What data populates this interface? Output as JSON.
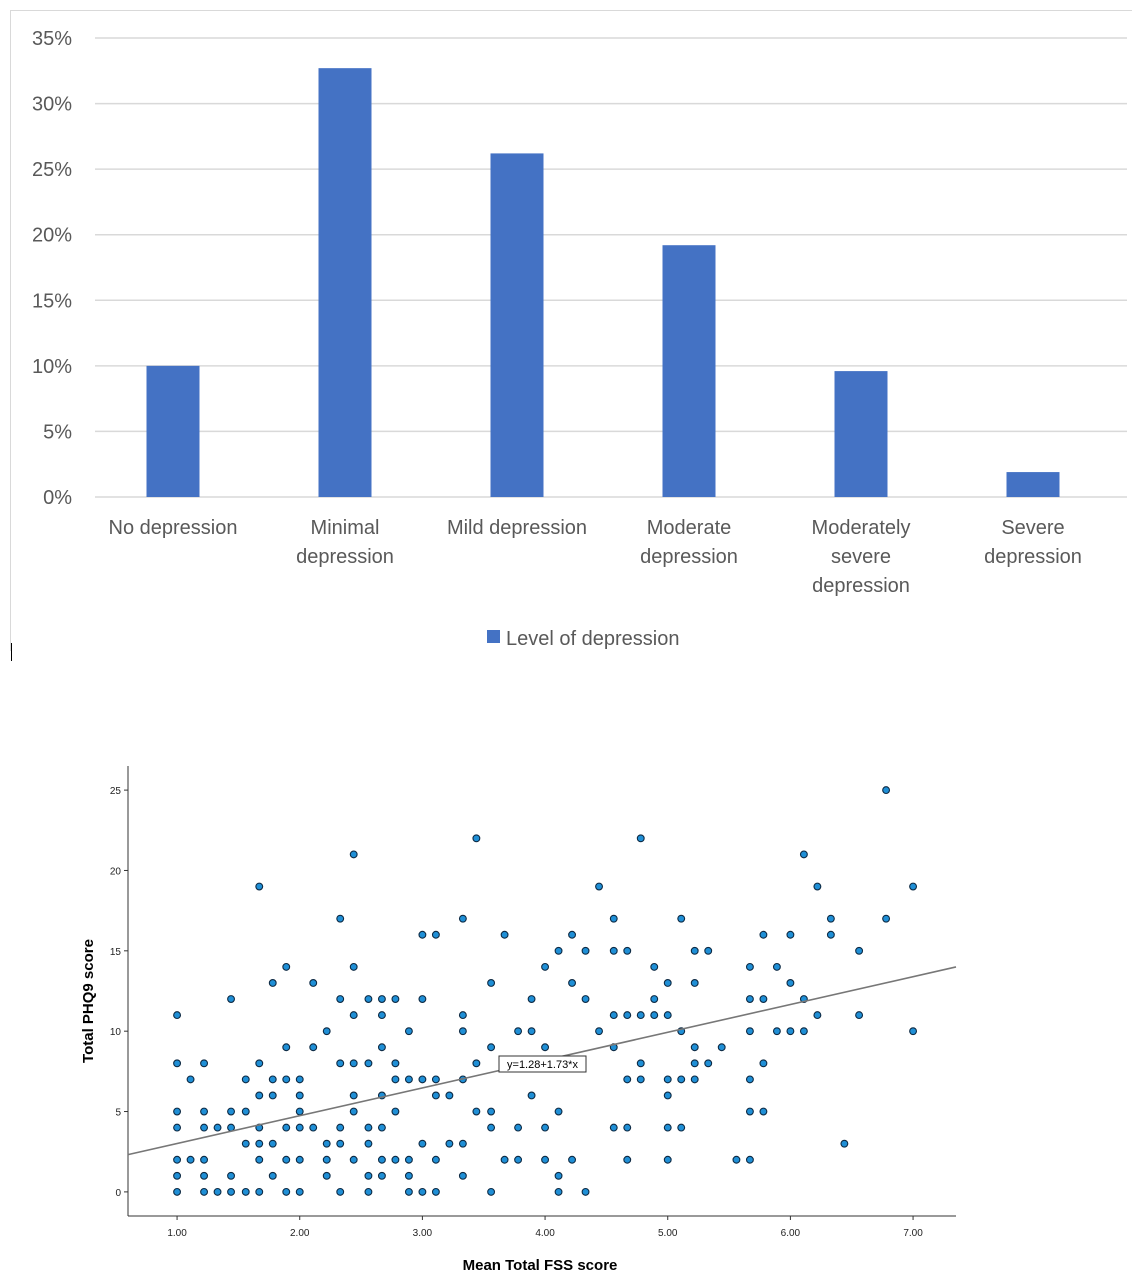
{
  "chart_data": [
    {
      "type": "bar",
      "title": "",
      "xlabel": "",
      "ylabel": "",
      "ylim": [
        0,
        35
      ],
      "y_ticks": [
        "0%",
        "5%",
        "10%",
        "15%",
        "20%",
        "25%",
        "30%",
        "35%"
      ],
      "categories": [
        [
          "No depression"
        ],
        [
          "Minimal",
          "depression"
        ],
        [
          "Mild depression"
        ],
        [
          "Moderate",
          "depression"
        ],
        [
          "Moderately",
          "severe",
          "depression"
        ],
        [
          "Severe",
          "depression"
        ]
      ],
      "series": [
        {
          "name": "Level of depression",
          "values": [
            10,
            32.7,
            26.2,
            19.2,
            9.6,
            1.9
          ]
        }
      ],
      "legend": "bottom-center",
      "grid": true,
      "colors": {
        "bar": "#4472c4",
        "grid": "#d9d9d9",
        "text": "#595959"
      }
    },
    {
      "type": "scatter",
      "xlabel": "Mean Total FSS score",
      "ylabel": "Total PHQ9 score",
      "xlim": [
        0.6,
        7.35
      ],
      "ylim": [
        -1.5,
        26.5
      ],
      "x_ticks": [
        "1.00",
        "2.00",
        "3.00",
        "4.00",
        "5.00",
        "6.00",
        "7.00"
      ],
      "y_ticks": [
        "0",
        "5",
        "10",
        "15",
        "20",
        "25"
      ],
      "fit_line": {
        "intercept": 1.28,
        "slope": 1.73,
        "label": "y=1.28+1.73*x"
      },
      "colors": {
        "point_fill": "#1f8fd6",
        "point_stroke": "#0d2a44",
        "line": "#777777"
      },
      "points": [
        [
          1.0,
          0
        ],
        [
          1.0,
          1
        ],
        [
          1.0,
          2
        ],
        [
          1.0,
          4
        ],
        [
          1.0,
          5
        ],
        [
          1.0,
          8
        ],
        [
          1.0,
          11
        ],
        [
          1.11,
          2
        ],
        [
          1.11,
          7
        ],
        [
          1.22,
          0
        ],
        [
          1.22,
          1
        ],
        [
          1.22,
          2
        ],
        [
          1.22,
          4
        ],
        [
          1.22,
          5
        ],
        [
          1.22,
          8
        ],
        [
          1.33,
          0
        ],
        [
          1.33,
          4
        ],
        [
          1.44,
          0
        ],
        [
          1.44,
          1
        ],
        [
          1.44,
          4
        ],
        [
          1.44,
          5
        ],
        [
          1.44,
          12
        ],
        [
          1.56,
          0
        ],
        [
          1.56,
          3
        ],
        [
          1.56,
          5
        ],
        [
          1.56,
          7
        ],
        [
          1.67,
          0
        ],
        [
          1.67,
          2
        ],
        [
          1.67,
          3
        ],
        [
          1.67,
          4
        ],
        [
          1.67,
          6
        ],
        [
          1.67,
          8
        ],
        [
          1.67,
          19
        ],
        [
          1.78,
          1
        ],
        [
          1.78,
          3
        ],
        [
          1.78,
          6
        ],
        [
          1.78,
          7
        ],
        [
          1.78,
          13
        ],
        [
          1.89,
          0
        ],
        [
          1.89,
          2
        ],
        [
          1.89,
          4
        ],
        [
          1.89,
          7
        ],
        [
          1.89,
          9
        ],
        [
          1.89,
          14
        ],
        [
          2.0,
          0
        ],
        [
          2.0,
          2
        ],
        [
          2.0,
          4
        ],
        [
          2.0,
          5
        ],
        [
          2.0,
          6
        ],
        [
          2.0,
          7
        ],
        [
          2.11,
          4
        ],
        [
          2.11,
          9
        ],
        [
          2.11,
          13
        ],
        [
          2.22,
          1
        ],
        [
          2.22,
          2
        ],
        [
          2.22,
          3
        ],
        [
          2.22,
          10
        ],
        [
          2.33,
          0
        ],
        [
          2.33,
          3
        ],
        [
          2.33,
          4
        ],
        [
          2.33,
          8
        ],
        [
          2.33,
          12
        ],
        [
          2.33,
          17
        ],
        [
          2.44,
          2
        ],
        [
          2.44,
          5
        ],
        [
          2.44,
          6
        ],
        [
          2.44,
          8
        ],
        [
          2.44,
          11
        ],
        [
          2.44,
          14
        ],
        [
          2.44,
          21
        ],
        [
          2.56,
          0
        ],
        [
          2.56,
          1
        ],
        [
          2.56,
          3
        ],
        [
          2.56,
          4
        ],
        [
          2.56,
          8
        ],
        [
          2.56,
          12
        ],
        [
          2.67,
          1
        ],
        [
          2.67,
          2
        ],
        [
          2.67,
          4
        ],
        [
          2.67,
          6
        ],
        [
          2.67,
          9
        ],
        [
          2.67,
          11
        ],
        [
          2.67,
          12
        ],
        [
          2.78,
          2
        ],
        [
          2.78,
          5
        ],
        [
          2.78,
          7
        ],
        [
          2.78,
          8
        ],
        [
          2.78,
          12
        ],
        [
          2.89,
          0
        ],
        [
          2.89,
          1
        ],
        [
          2.89,
          2
        ],
        [
          2.89,
          7
        ],
        [
          2.89,
          10
        ],
        [
          3.0,
          0
        ],
        [
          3.0,
          3
        ],
        [
          3.0,
          7
        ],
        [
          3.0,
          12
        ],
        [
          3.0,
          16
        ],
        [
          3.11,
          0
        ],
        [
          3.11,
          2
        ],
        [
          3.11,
          6
        ],
        [
          3.11,
          7
        ],
        [
          3.11,
          16
        ],
        [
          3.22,
          3
        ],
        [
          3.22,
          6
        ],
        [
          3.33,
          1
        ],
        [
          3.33,
          3
        ],
        [
          3.33,
          7
        ],
        [
          3.33,
          10
        ],
        [
          3.33,
          11
        ],
        [
          3.33,
          17
        ],
        [
          3.44,
          5
        ],
        [
          3.44,
          8
        ],
        [
          3.44,
          22
        ],
        [
          3.56,
          0
        ],
        [
          3.56,
          4
        ],
        [
          3.56,
          5
        ],
        [
          3.56,
          9
        ],
        [
          3.56,
          13
        ],
        [
          3.67,
          2
        ],
        [
          3.67,
          16
        ],
        [
          3.78,
          2
        ],
        [
          3.78,
          4
        ],
        [
          3.78,
          10
        ],
        [
          3.89,
          6
        ],
        [
          3.89,
          10
        ],
        [
          3.89,
          12
        ],
        [
          4.0,
          2
        ],
        [
          4.0,
          4
        ],
        [
          4.0,
          9
        ],
        [
          4.0,
          14
        ],
        [
          4.11,
          0
        ],
        [
          4.11,
          1
        ],
        [
          4.11,
          5
        ],
        [
          4.11,
          15
        ],
        [
          4.22,
          2
        ],
        [
          4.22,
          13
        ],
        [
          4.22,
          16
        ],
        [
          4.33,
          0
        ],
        [
          4.33,
          12
        ],
        [
          4.33,
          15
        ],
        [
          4.44,
          10
        ],
        [
          4.44,
          19
        ],
        [
          4.56,
          4
        ],
        [
          4.56,
          9
        ],
        [
          4.56,
          11
        ],
        [
          4.56,
          15
        ],
        [
          4.56,
          17
        ],
        [
          4.67,
          2
        ],
        [
          4.67,
          4
        ],
        [
          4.67,
          7
        ],
        [
          4.67,
          11
        ],
        [
          4.67,
          15
        ],
        [
          4.78,
          7
        ],
        [
          4.78,
          8
        ],
        [
          4.78,
          11
        ],
        [
          4.78,
          22
        ],
        [
          4.89,
          11
        ],
        [
          4.89,
          12
        ],
        [
          4.89,
          14
        ],
        [
          5.0,
          2
        ],
        [
          5.0,
          4
        ],
        [
          5.0,
          6
        ],
        [
          5.0,
          7
        ],
        [
          5.0,
          11
        ],
        [
          5.0,
          13
        ],
        [
          5.11,
          4
        ],
        [
          5.11,
          7
        ],
        [
          5.11,
          10
        ],
        [
          5.11,
          17
        ],
        [
          5.22,
          7
        ],
        [
          5.22,
          8
        ],
        [
          5.22,
          9
        ],
        [
          5.22,
          13
        ],
        [
          5.22,
          15
        ],
        [
          5.33,
          8
        ],
        [
          5.33,
          15
        ],
        [
          5.44,
          9
        ],
        [
          5.56,
          2
        ],
        [
          5.67,
          2
        ],
        [
          5.67,
          5
        ],
        [
          5.67,
          7
        ],
        [
          5.67,
          10
        ],
        [
          5.67,
          12
        ],
        [
          5.67,
          14
        ],
        [
          5.78,
          5
        ],
        [
          5.78,
          8
        ],
        [
          5.78,
          12
        ],
        [
          5.78,
          16
        ],
        [
          5.89,
          10
        ],
        [
          5.89,
          14
        ],
        [
          6.0,
          10
        ],
        [
          6.0,
          13
        ],
        [
          6.0,
          16
        ],
        [
          6.11,
          10
        ],
        [
          6.11,
          12
        ],
        [
          6.11,
          21
        ],
        [
          6.22,
          11
        ],
        [
          6.22,
          19
        ],
        [
          6.33,
          16
        ],
        [
          6.33,
          17
        ],
        [
          6.44,
          3
        ],
        [
          6.56,
          11
        ],
        [
          6.56,
          15
        ],
        [
          6.78,
          17
        ],
        [
          6.78,
          25
        ],
        [
          7.0,
          10
        ],
        [
          7.0,
          19
        ]
      ]
    }
  ]
}
